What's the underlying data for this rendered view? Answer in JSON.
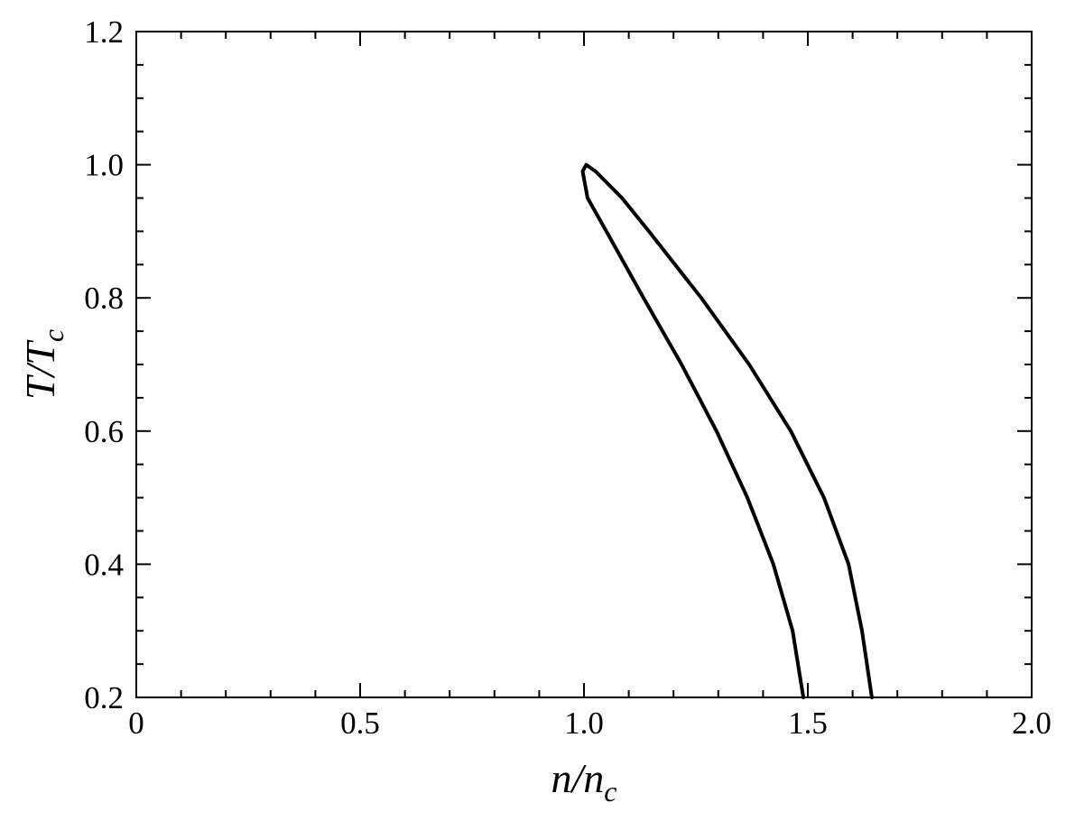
{
  "chart_data": {
    "type": "line",
    "xlabel": [
      "n/n",
      "c"
    ],
    "ylabel": [
      "T/T",
      "c"
    ],
    "x": [
      1.49,
      1.466,
      1.423,
      1.365,
      1.296,
      1.218,
      1.133,
      1.05,
      1.008,
      0.997,
      1.005,
      1.026,
      1.085,
      1.145,
      1.262,
      1.369,
      1.462,
      1.536,
      1.591,
      1.621,
      1.643
    ],
    "values": [
      0.2,
      0.3,
      0.4,
      0.5,
      0.6,
      0.7,
      0.8,
      0.9,
      0.95,
      0.99,
      1.0,
      0.99,
      0.95,
      0.9,
      0.8,
      0.7,
      0.6,
      0.5,
      0.4,
      0.3,
      0.2
    ],
    "color": "#000000",
    "xlim": [
      0,
      2
    ],
    "ylim": [
      0.2,
      1.2
    ],
    "xticks": [
      0,
      0.5,
      {
        "value": 1,
        "label": "1.0"
      },
      1.5,
      {
        "value": 2,
        "label": "2.0"
      }
    ],
    "yticks": [
      0.2,
      0.4,
      0.6,
      0.8,
      {
        "value": 1,
        "label": "1.0"
      },
      1.2
    ],
    "xminorticks": [
      0.1,
      0.2,
      0.3,
      0.4,
      0.6,
      0.7,
      0.8,
      0.9,
      1.1,
      1.2,
      1.3,
      1.4,
      1.6,
      1.7,
      1.8,
      1.9
    ],
    "yminorticks": [
      0.25,
      0.3,
      0.35,
      0.45,
      0.5,
      0.55,
      0.65,
      0.7,
      0.75,
      0.85,
      0.9,
      0.95,
      1.05,
      1.1,
      1.15
    ]
  }
}
